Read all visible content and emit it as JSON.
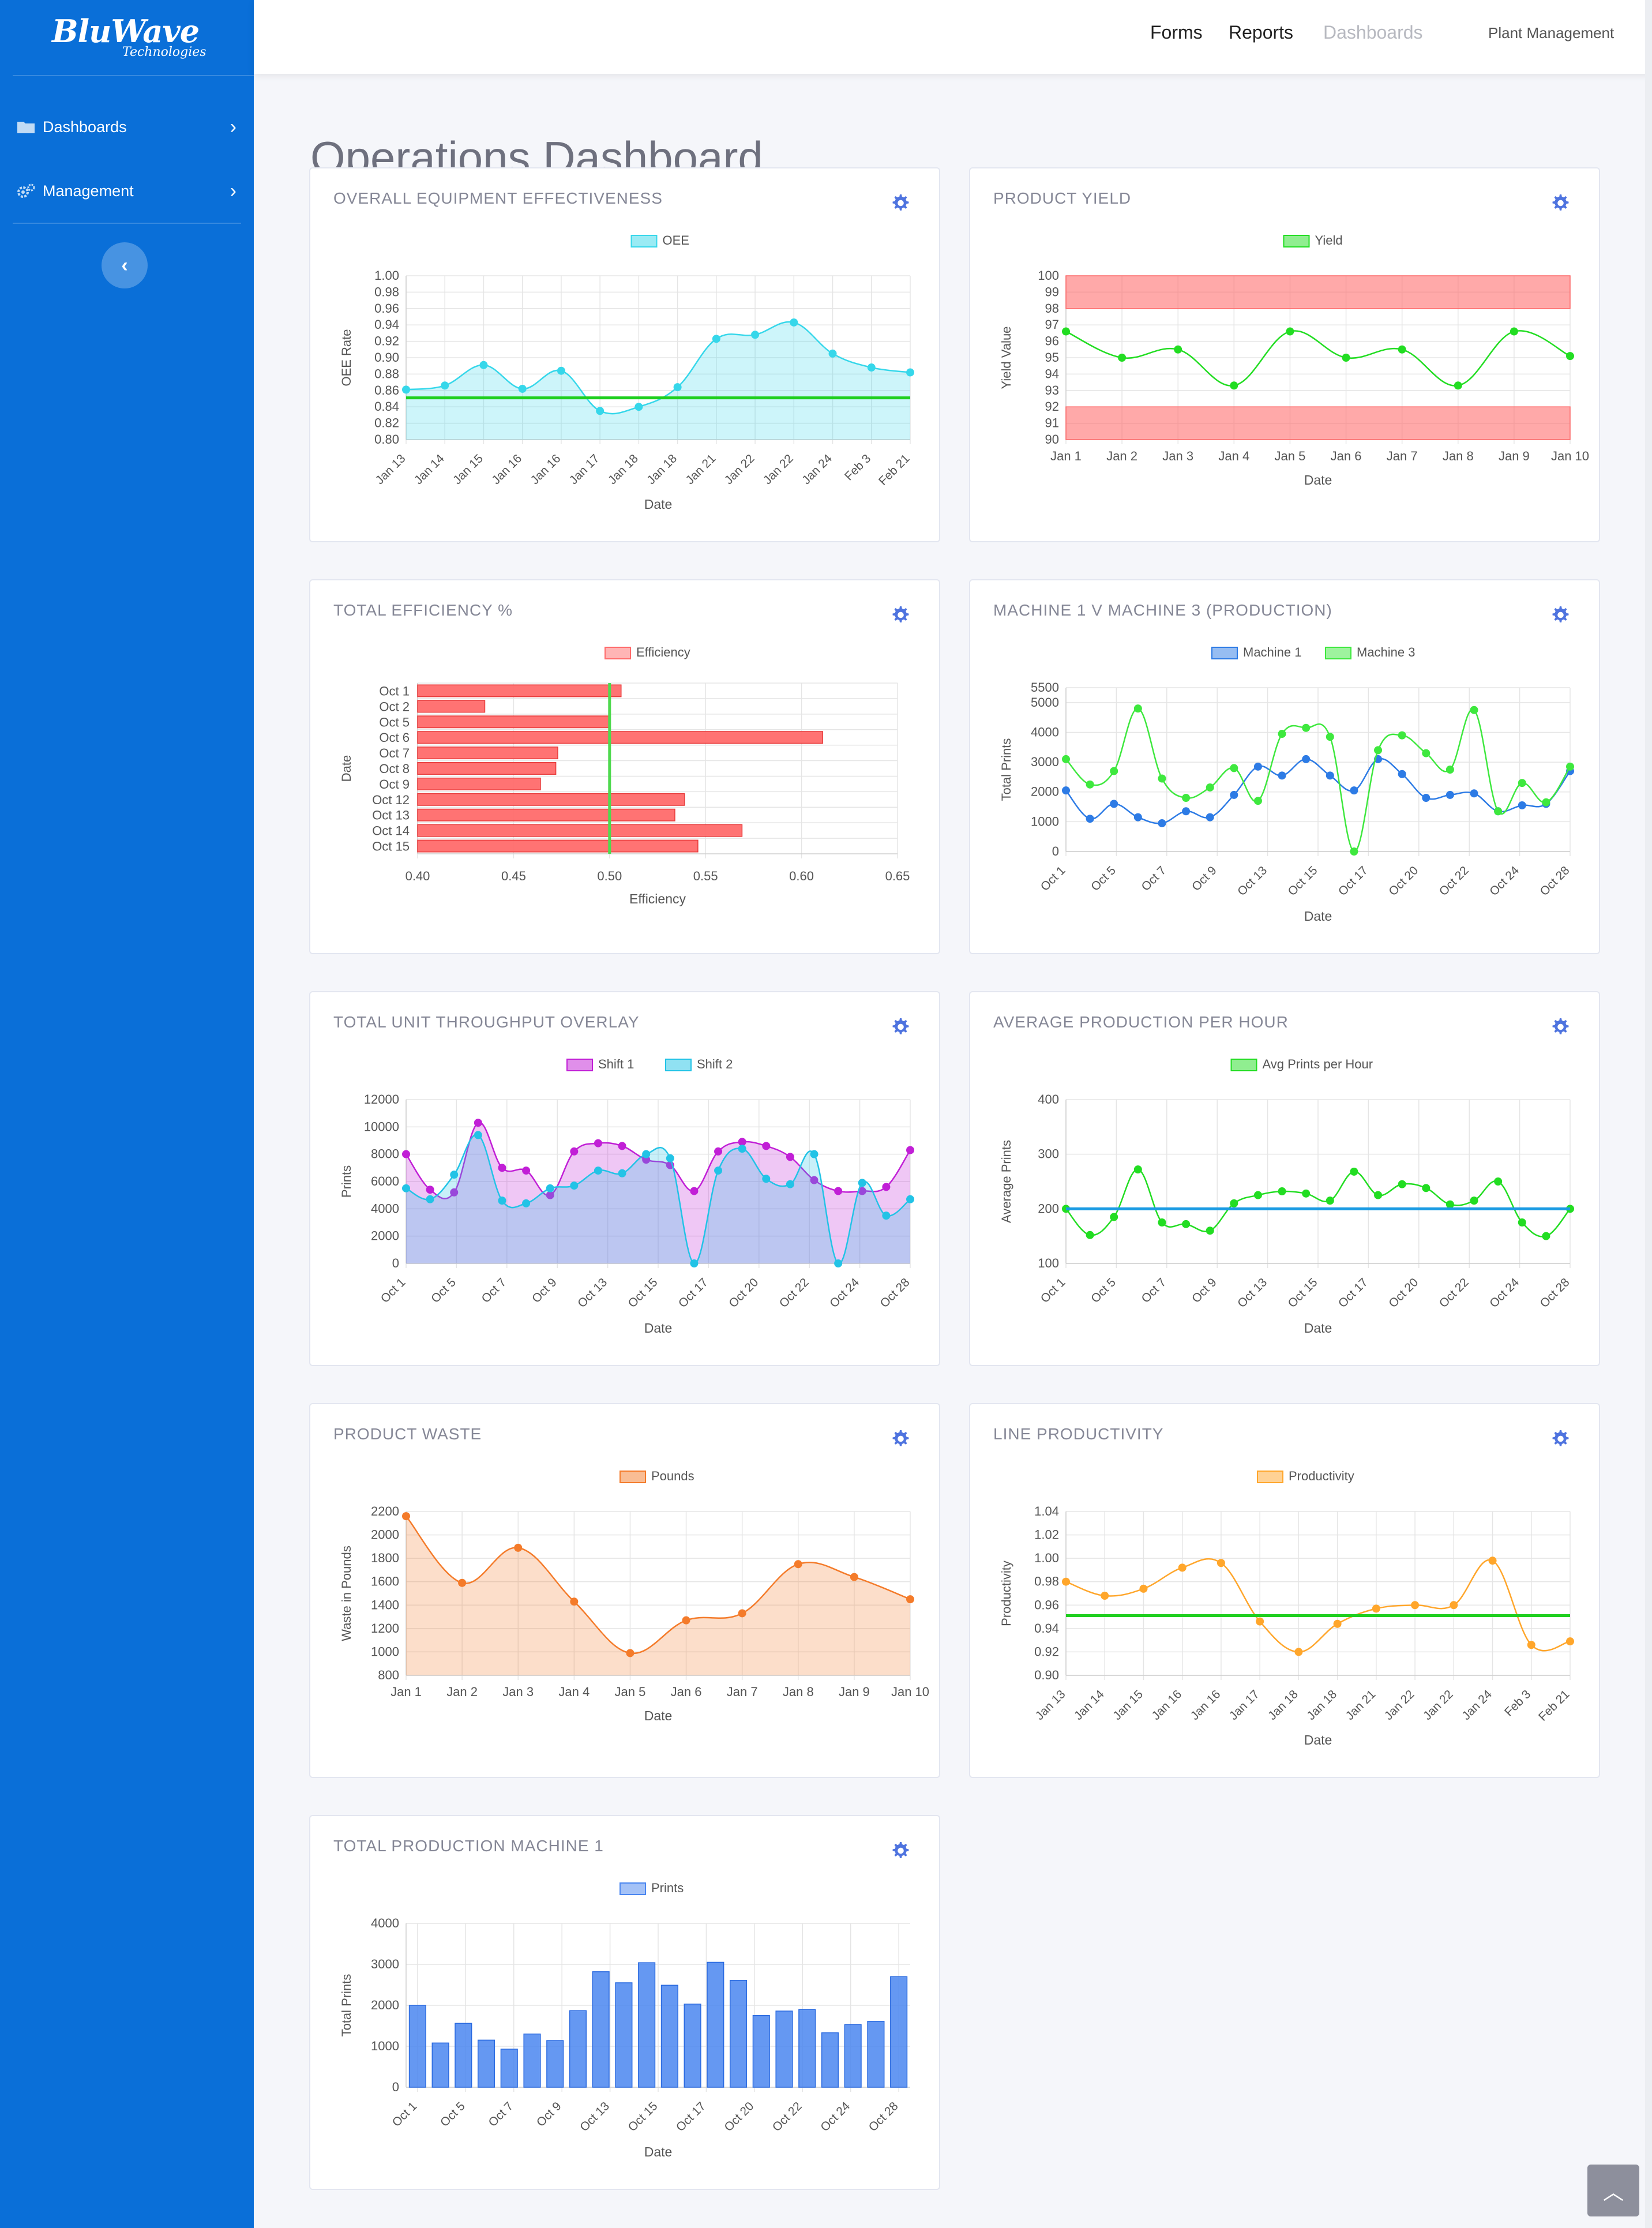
{
  "app": {
    "brand_main": "BluWave",
    "brand_sub": "Technologies"
  },
  "sidebar": {
    "items": [
      {
        "label": "Dashboards",
        "icon": "folder-icon"
      },
      {
        "label": "Management",
        "icon": "gears-icon"
      }
    ],
    "collapse_icon": "chevron-left-icon"
  },
  "topnav": {
    "links": [
      "Forms",
      "Reports",
      "Dashboards"
    ],
    "active": "Dashboards",
    "right_label": "Plant Management"
  },
  "page": {
    "title": "Operations Dashboard"
  },
  "cards": [
    {
      "title": "OVERALL EQUIPMENT EFFECTIVENESS"
    },
    {
      "title": "PRODUCT YIELD"
    },
    {
      "title": "TOTAL EFFICIENCY %"
    },
    {
      "title": "MACHINE 1 V MACHINE 3 (PRODUCTION)"
    },
    {
      "title": "TOTAL UNIT THROUGHPUT OVERLAY"
    },
    {
      "title": "AVERAGE PRODUCTION PER HOUR"
    },
    {
      "title": "PRODUCT WASTE"
    },
    {
      "title": "LINE PRODUCTIVITY"
    },
    {
      "title": "TOTAL PRODUCTION MACHINE 1"
    }
  ],
  "colors": {
    "sidebar": "#0a6fd8",
    "gear": "#4e73df",
    "threshold_green": "#1fcf1f",
    "threshold_blue": "#1a9be3"
  },
  "chart_data": [
    {
      "type": "area",
      "xlabel": "Date",
      "ylabel": "OEE Rate",
      "ylim": [
        0.8,
        1.0
      ],
      "yticks": [
        "1.00",
        "0.98",
        "0.96",
        "0.94",
        "0.92",
        "0.90",
        "0.88",
        "0.86",
        "0.84",
        "0.82",
        "0.80"
      ],
      "categories": [
        "Jan 13",
        "Jan 14",
        "Jan 15",
        "Jan 16",
        "Jan 16",
        "Jan 17",
        "Jan 18",
        "Jan 18",
        "Jan 21",
        "Jan 22",
        "Jan 22",
        "Jan 24",
        "Feb 3",
        "Feb 21"
      ],
      "series": [
        {
          "name": "OEE",
          "values": [
            0.861,
            0.866,
            0.891,
            0.862,
            0.884,
            0.835,
            0.84,
            0.864,
            0.923,
            0.928,
            0.943,
            0.905,
            0.888,
            0.882
          ],
          "color": "#36d7ea"
        }
      ],
      "threshold": 0.851
    },
    {
      "type": "line",
      "xlabel": "Date",
      "ylabel": "Yield Value",
      "ylim": [
        90,
        100
      ],
      "yticks": [
        "100",
        "99",
        "98",
        "97",
        "96",
        "95",
        "94",
        "93",
        "92",
        "91",
        "90"
      ],
      "categories": [
        "Jan 1",
        "Jan 2",
        "Jan 3",
        "Jan 4",
        "Jan 5",
        "Jan 6",
        "Jan 7",
        "Jan 8",
        "Jan 9",
        "Jan 10"
      ],
      "series": [
        {
          "name": "Yield",
          "values": [
            96.6,
            95.0,
            95.5,
            93.3,
            96.6,
            95.0,
            95.5,
            93.3,
            96.6,
            95.1
          ],
          "color": "#22dd22"
        }
      ],
      "bands": [
        [
          98,
          100
        ],
        [
          90,
          92
        ]
      ]
    },
    {
      "type": "bar",
      "orientation": "horizontal",
      "xlabel": "Efficiency",
      "ylabel": "Date",
      "xlim": [
        0.4,
        0.65
      ],
      "xticks": [
        "0.40",
        "0.45",
        "0.50",
        "0.55",
        "0.60",
        "0.65"
      ],
      "categories": [
        "Oct 1",
        "Oct 2",
        "Oct 5",
        "Oct 6",
        "Oct 7",
        "Oct 8",
        "Oct 9",
        "Oct 12",
        "Oct 13",
        "Oct 14",
        "Oct 15"
      ],
      "series": [
        {
          "name": "Efficiency",
          "values": [
            0.506,
            0.435,
            0.5,
            0.611,
            0.473,
            0.472,
            0.464,
            0.539,
            0.534,
            0.569,
            0.546
          ],
          "color": "#ff6b6b"
        }
      ],
      "threshold": 0.5
    },
    {
      "type": "line",
      "xlabel": "Date",
      "ylabel": "Total Prints",
      "ylim": [
        0,
        5500
      ],
      "yticks": [
        "5500",
        "5000",
        "4000",
        "3000",
        "2000",
        "1000",
        "0"
      ],
      "xticks": [
        "Oct 1",
        "Oct 5",
        "Oct 7",
        "Oct 9",
        "Oct 13",
        "Oct 15",
        "Oct 17",
        "Oct 20",
        "Oct 22",
        "Oct 24",
        "Oct 28"
      ],
      "series": [
        {
          "name": "Machine 1",
          "values": [
            2050,
            1100,
            1600,
            1150,
            950,
            1350,
            1150,
            1900,
            2850,
            2550,
            3100,
            2550,
            2050,
            3100,
            2600,
            1800,
            1900,
            1950,
            1350,
            1550,
            1600,
            2700
          ],
          "color": "#2d7be5"
        },
        {
          "name": "Machine 3",
          "values": [
            3100,
            2250,
            2700,
            4800,
            2450,
            1800,
            2150,
            2800,
            1700,
            3950,
            4150,
            3850,
            0,
            3400,
            3900,
            3300,
            2750,
            4750,
            1350,
            2300,
            1650,
            2850
          ],
          "color": "#3ee83e"
        }
      ]
    },
    {
      "type": "area",
      "xlabel": "Date",
      "ylabel": "Prints",
      "ylim": [
        0,
        12000
      ],
      "yticks": [
        "12000",
        "10000",
        "8000",
        "6000",
        "4000",
        "2000",
        "0"
      ],
      "xticks": [
        "Oct 1",
        "Oct 5",
        "Oct 7",
        "Oct 9",
        "Oct 13",
        "Oct 15",
        "Oct 17",
        "Oct 20",
        "Oct 22",
        "Oct 24",
        "Oct 28"
      ],
      "series": [
        {
          "name": "Shift 1",
          "values": [
            8000,
            5400,
            5200,
            10300,
            7000,
            6800,
            5000,
            8200,
            8800,
            8600,
            7600,
            7200,
            5300,
            8200,
            8900,
            8600,
            7800,
            6100,
            5300,
            5300,
            5600,
            8300
          ],
          "color": "#c11fd6"
        },
        {
          "name": "Shift 2",
          "values": [
            5500,
            4700,
            6500,
            9400,
            4600,
            4400,
            5500,
            5700,
            6800,
            6600,
            8000,
            7700,
            0,
            6800,
            8400,
            6200,
            5800,
            8000,
            0,
            5900,
            3500,
            4700
          ],
          "color": "#22c3e6"
        }
      ]
    },
    {
      "type": "line",
      "xlabel": "Date",
      "ylabel": "Average Prints",
      "ylim": [
        100,
        400
      ],
      "yticks": [
        "400",
        "300",
        "200",
        "100"
      ],
      "xticks": [
        "Oct 1",
        "Oct 5",
        "Oct 7",
        "Oct 9",
        "Oct 13",
        "Oct 15",
        "Oct 17",
        "Oct 20",
        "Oct 22",
        "Oct 24",
        "Oct 28"
      ],
      "series": [
        {
          "name": "Avg Prints per Hour",
          "values": [
            200,
            152,
            185,
            272,
            175,
            172,
            160,
            210,
            225,
            232,
            228,
            215,
            268,
            225,
            245,
            238,
            208,
            215,
            250,
            175,
            150,
            200
          ],
          "color": "#22dd22"
        }
      ],
      "threshold": 200
    },
    {
      "type": "area",
      "xlabel": "Date",
      "ylabel": "Waste in Pounds",
      "ylim": [
        800,
        2200
      ],
      "yticks": [
        "2200",
        "2000",
        "1800",
        "1600",
        "1400",
        "1200",
        "1000",
        "800"
      ],
      "categories": [
        "Jan 1",
        "Jan 2",
        "Jan 3",
        "Jan 4",
        "Jan 5",
        "Jan 6",
        "Jan 7",
        "Jan 8",
        "Jan 9",
        "Jan 10"
      ],
      "series": [
        {
          "name": "Pounds",
          "values": [
            2160,
            1590,
            1890,
            1430,
            990,
            1270,
            1330,
            1750,
            1640,
            1450
          ],
          "color": "#f47b2a"
        }
      ]
    },
    {
      "type": "line",
      "xlabel": "Date",
      "ylabel": "Productivity",
      "ylim": [
        0.9,
        1.04
      ],
      "yticks": [
        "1.04",
        "1.02",
        "1.00",
        "0.98",
        "0.96",
        "0.94",
        "0.92",
        "0.90"
      ],
      "categories": [
        "Jan 13",
        "Jan 14",
        "Jan 15",
        "Jan 16",
        "Jan 16",
        "Jan 17",
        "Jan 18",
        "Jan 18",
        "Jan 21",
        "Jan 22",
        "Jan 22",
        "Jan 24",
        "Feb 3",
        "Feb 21"
      ],
      "series": [
        {
          "name": "Productivity",
          "values": [
            0.98,
            0.968,
            0.974,
            0.992,
            0.996,
            0.946,
            0.92,
            0.944,
            0.957,
            0.96,
            0.96,
            0.998,
            0.926,
            0.929
          ],
          "color": "#ffa62b"
        }
      ],
      "threshold": 0.951
    },
    {
      "type": "bar",
      "xlabel": "Date",
      "ylabel": "Total Prints",
      "ylim": [
        0,
        4000
      ],
      "yticks": [
        "4000",
        "3000",
        "2000",
        "1000",
        "0"
      ],
      "xticks": [
        "Oct 1",
        "Oct 5",
        "Oct 7",
        "Oct 9",
        "Oct 13",
        "Oct 15",
        "Oct 17",
        "Oct 20",
        "Oct 22",
        "Oct 24",
        "Oct 28"
      ],
      "series": [
        {
          "name": "Prints",
          "values": [
            2000,
            1080,
            1560,
            1150,
            930,
            1300,
            1140,
            1870,
            2820,
            2550,
            3040,
            2490,
            2030,
            3050,
            2610,
            1750,
            1860,
            1900,
            1330,
            1530,
            1610,
            2700
          ],
          "color": "#4a86f0"
        }
      ]
    }
  ]
}
